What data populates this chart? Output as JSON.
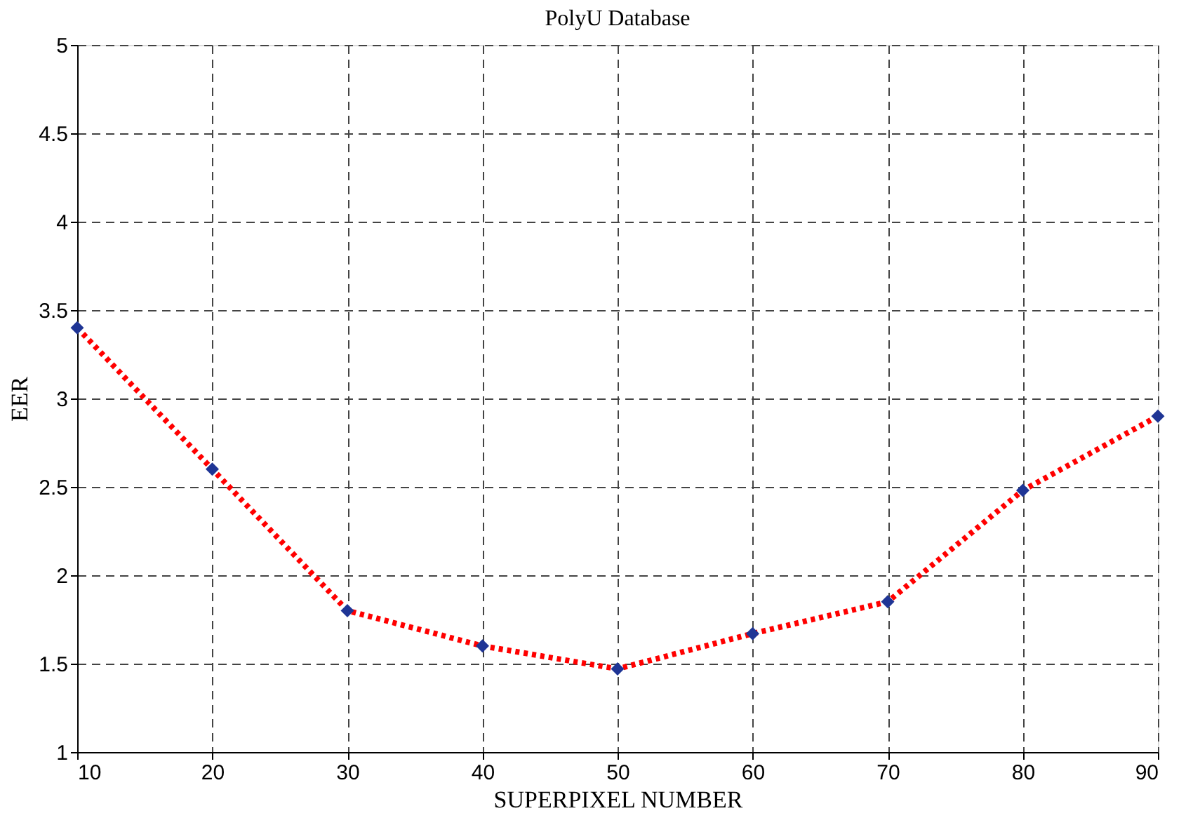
{
  "chart_data": {
    "type": "line",
    "title": "PolyU Database",
    "xlabel": "SUPERPIXEL NUMBER",
    "ylabel": "EER",
    "x": [
      10,
      20,
      30,
      40,
      50,
      60,
      70,
      80,
      90
    ],
    "series": [
      {
        "color": "#ff0000",
        "values": [
          3.4,
          2.6,
          1.8,
          1.6,
          1.47,
          1.67,
          1.85,
          2.48,
          2.9
        ]
      }
    ],
    "xlim": [
      10,
      90
    ],
    "xticks": [
      10,
      20,
      30,
      40,
      50,
      60,
      70,
      80,
      90
    ],
    "ylim": [
      1,
      5
    ],
    "yticks": [
      1,
      1.5,
      2,
      2.5,
      3,
      3.5,
      4,
      4.5,
      5
    ],
    "grid": true,
    "marker": "diamond",
    "line_style": "dotted"
  }
}
